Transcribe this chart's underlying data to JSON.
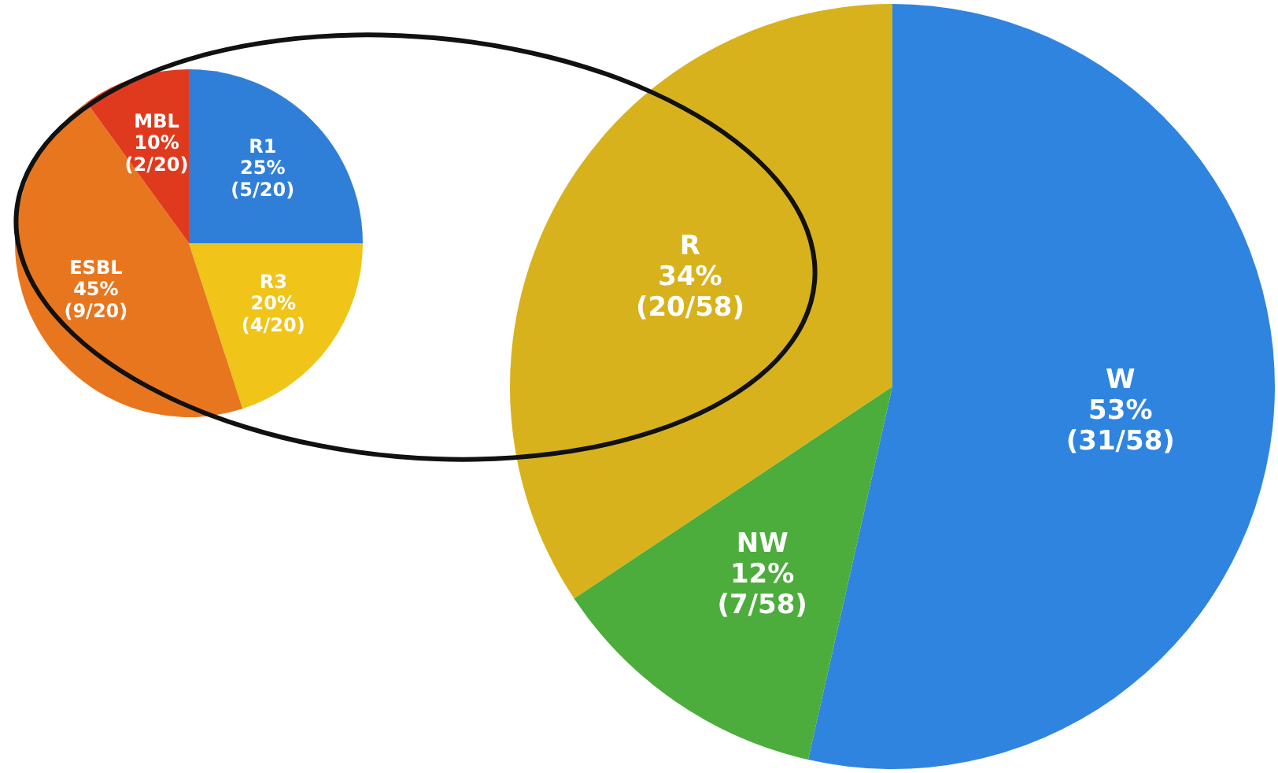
{
  "chart_data": [
    {
      "type": "pie",
      "categories": [
        "R1",
        "R3",
        "ESBL",
        "MBL"
      ],
      "values": [
        25,
        20,
        45,
        10
      ],
      "colors": [
        "#2f7fd9",
        "#f0c419",
        "#e8761e",
        "#e03a1e"
      ],
      "value_labels": [
        "25% (5/20)",
        "20% (4/20)",
        "45% (9/20)",
        "10% (2/20)"
      ]
    },
    {
      "type": "pie",
      "categories": [
        "W",
        "NW",
        "R"
      ],
      "values": [
        53,
        12,
        34
      ],
      "colors": [
        "#2f84e0",
        "#4cad3c",
        "#d8b21c"
      ],
      "value_labels": [
        "53% (31/58)",
        "12% (7/58)",
        "34% (20/58)"
      ]
    }
  ]
}
